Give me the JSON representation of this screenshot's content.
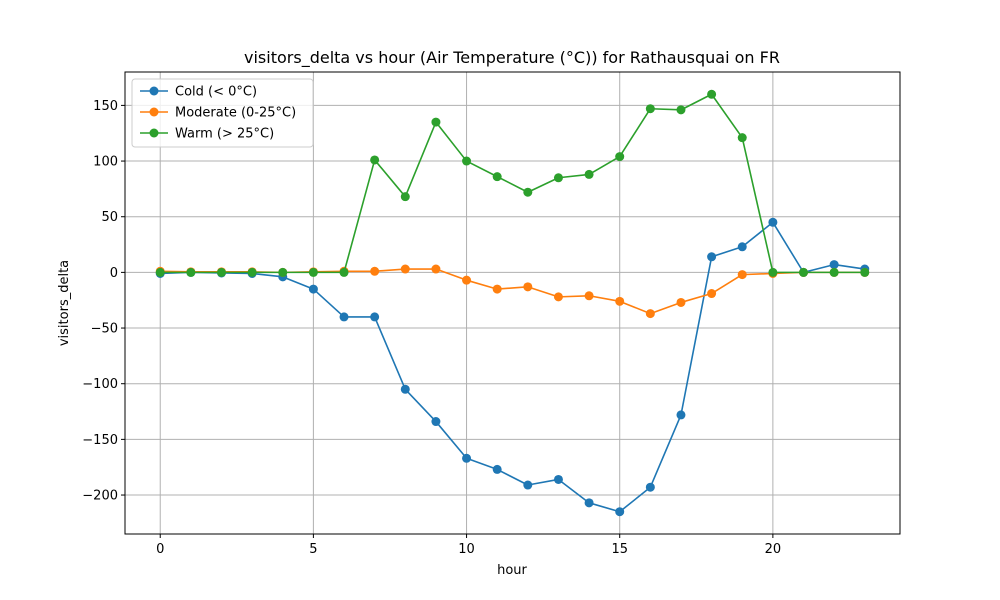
{
  "chart_data": {
    "type": "line",
    "title": "visitors_delta vs hour (Air Temperature (°C)) for Rathausquai on FR",
    "xlabel": "hour",
    "ylabel": "visitors_delta",
    "xlim": [
      -1.15,
      24.15
    ],
    "ylim": [
      -235,
      180
    ],
    "xticks": [
      0,
      5,
      10,
      15,
      20
    ],
    "yticks": [
      -200,
      -150,
      -100,
      -50,
      0,
      50,
      100,
      150
    ],
    "ytick_labels": [
      "−200",
      "−150",
      "−100",
      "−50",
      "0",
      "50",
      "100",
      "150"
    ],
    "grid": true,
    "legend_position": "top-left",
    "x": [
      0,
      1,
      2,
      3,
      4,
      5,
      6,
      7,
      8,
      9,
      10,
      11,
      12,
      13,
      14,
      15,
      16,
      17,
      18,
      19,
      20,
      21,
      22,
      23
    ],
    "series": [
      {
        "name": "Cold (< 0°C)",
        "color": "#1f77b4",
        "values": [
          -1,
          0,
          -0.5,
          -1,
          -4,
          -15,
          -40,
          -40,
          -105,
          -134,
          -167,
          -177,
          -191,
          -186,
          -207,
          -215,
          -193,
          -128,
          14,
          23,
          45,
          0,
          7,
          3
        ]
      },
      {
        "name": "Moderate (0-25°C)",
        "color": "#ff7f0e",
        "values": [
          1,
          0.5,
          0.5,
          0.5,
          0,
          0.5,
          1,
          1,
          3,
          3,
          -7,
          -15,
          -13,
          -22,
          -21,
          -26,
          -37,
          -27,
          -19,
          -2,
          -1,
          0,
          0,
          0
        ]
      },
      {
        "name": "Warm (> 25°C)",
        "color": "#2ca02c",
        "values": [
          0,
          0,
          0,
          0,
          0,
          0,
          0,
          101,
          68,
          135,
          100,
          86,
          72,
          85,
          88,
          104,
          147,
          146,
          160,
          121,
          0,
          0,
          0,
          0
        ]
      }
    ]
  }
}
